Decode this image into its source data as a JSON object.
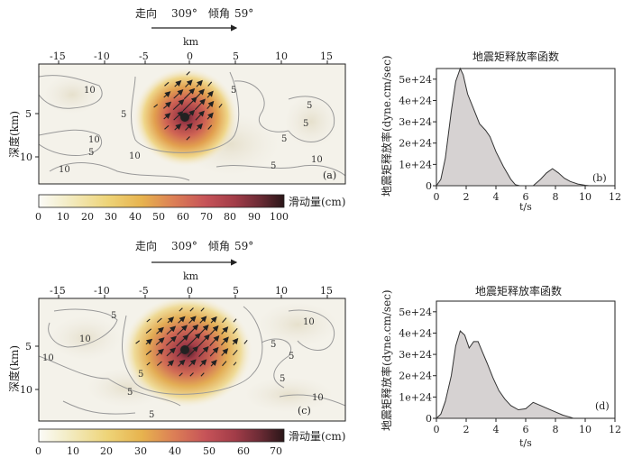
{
  "slip_panels": [
    {
      "strike_label": "走向",
      "strike_value": "309°",
      "dip_label": "倾角",
      "dip_value": "59°",
      "x_unit": "km",
      "x_ticks": [
        "-15",
        "-10",
        "-5",
        "0",
        "5",
        "10",
        "15"
      ],
      "y_label": "深度(km)",
      "y_ticks": [
        "5",
        "10"
      ],
      "panel_tag": "(a)",
      "colorbar_label": "滑动量(cm)",
      "colorbar_ticks": [
        "0",
        "10",
        "20",
        "30",
        "40",
        "50",
        "60",
        "70",
        "80",
        "90",
        "100"
      ],
      "contour_labels": [
        "10",
        "10",
        "5",
        "5",
        "10",
        "10",
        "5",
        "5",
        "5",
        "5",
        "10",
        "5"
      ]
    },
    {
      "strike_label": "走向",
      "strike_value": "309°",
      "dip_label": "倾角",
      "dip_value": "59°",
      "x_unit": "km",
      "x_ticks": [
        "-15",
        "-10",
        "-5",
        "0",
        "5",
        "10",
        "15"
      ],
      "y_label": "深度(km)",
      "y_ticks": [
        "5",
        "10"
      ],
      "panel_tag": "(c)",
      "colorbar_label": "滑动量(cm)",
      "colorbar_ticks": [
        "0",
        "10",
        "20",
        "30",
        "40",
        "50",
        "60",
        "70"
      ],
      "contour_labels": [
        "5",
        "10",
        "10",
        "5",
        "5",
        "5",
        "10",
        "5",
        "10",
        "5",
        "5"
      ]
    }
  ],
  "chart_data": [
    {
      "type": "heatmap",
      "title": "",
      "xlabel": "km",
      "ylabel": "深度(km)",
      "xlim": [
        -18,
        17
      ],
      "ylim": [
        0,
        15
      ],
      "colorbar_range": [
        0,
        100
      ],
      "peak_slip_location_km": [
        -0.5,
        5.8
      ],
      "tag": "(a)"
    },
    {
      "type": "area",
      "title": "地震矩释放率函数",
      "xlabel": "t/s",
      "ylabel": "地震矩释放率(dyne.cm/sec)",
      "x_ticks": [
        "0",
        "2",
        "4",
        "6",
        "8",
        "10",
        "12"
      ],
      "y_ticks": [
        "0",
        "1e+24",
        "2e+24",
        "3e+24",
        "4e+24",
        "5e+24"
      ],
      "xlim": [
        0,
        12
      ],
      "ylim": [
        0,
        5.5e+24
      ],
      "tag": "(b)",
      "x": [
        0,
        0.3,
        0.6,
        1.0,
        1.3,
        1.6,
        1.8,
        2.1,
        2.5,
        2.9,
        3.3,
        3.6,
        4.0,
        4.5,
        5.0,
        5.3,
        5.6,
        6.0,
        6.5,
        7.0,
        7.4,
        7.8,
        8.2,
        8.6,
        9.0,
        9.5,
        10.0,
        10.3
      ],
      "y": [
        0,
        3e+23,
        1.3e+24,
        3.5e+24,
        4.9e+24,
        5.5e+24,
        5.2e+24,
        4.3e+24,
        3.6e+24,
        2.9e+24,
        2.6e+24,
        2.3e+24,
        1.6e+24,
        9e+23,
        3e+23,
        5e+22,
        0,
        0,
        0,
        3e+23,
        6e+23,
        8e+23,
        6e+23,
        3.5e+23,
        2e+23,
        8e+22,
        2e+22,
        0
      ]
    },
    {
      "type": "heatmap",
      "title": "",
      "xlabel": "km",
      "ylabel": "深度(km)",
      "xlim": [
        -18,
        17
      ],
      "ylim": [
        0,
        15
      ],
      "colorbar_range": [
        0,
        70
      ],
      "peak_slip_location_km": [
        -0.5,
        5.8
      ],
      "tag": "(c)"
    },
    {
      "type": "area",
      "title": "地震矩释放率函数",
      "xlabel": "t/s",
      "ylabel": "地震矩释放率(dyne.cm/sec)",
      "x_ticks": [
        "0",
        "2",
        "4",
        "6",
        "8",
        "10",
        "12"
      ],
      "y_ticks": [
        "0",
        "1e+24",
        "2e+24",
        "3e+24",
        "4e+24",
        "5e+24"
      ],
      "xlim": [
        0,
        12
      ],
      "ylim": [
        0,
        5.5e+24
      ],
      "tag": "(d)",
      "x": [
        0,
        0.3,
        0.6,
        1.0,
        1.3,
        1.6,
        1.9,
        2.2,
        2.5,
        2.8,
        3.1,
        3.4,
        3.8,
        4.2,
        4.6,
        5.0,
        5.5,
        6.0,
        6.5,
        7.0,
        7.5,
        8.0,
        8.5,
        9.0,
        9.2
      ],
      "y": [
        0,
        2e+23,
        8e+23,
        2e+24,
        3.4e+24,
        4.1e+24,
        3.9e+24,
        3.3e+24,
        3.6e+24,
        3.6e+24,
        3.1e+24,
        2.6e+24,
        1.9e+24,
        1.3e+24,
        9e+23,
        6e+23,
        4e+23,
        4.5e+23,
        7.5e+23,
        6e+23,
        4.5e+23,
        3e+23,
        1.5e+23,
        5e+22,
        0
      ]
    }
  ]
}
